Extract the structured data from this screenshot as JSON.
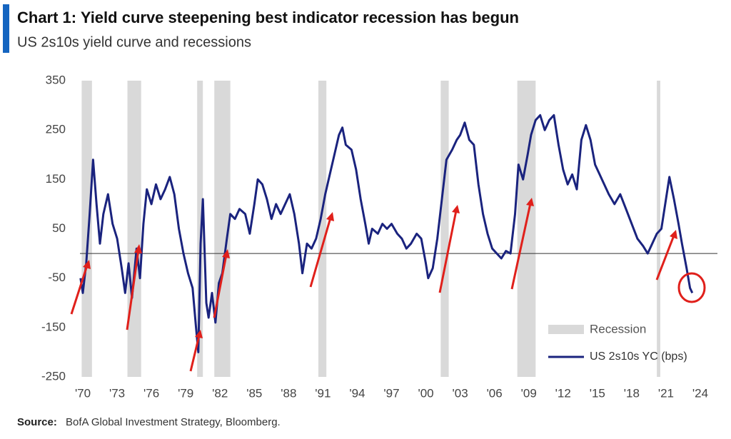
{
  "chart_data": {
    "type": "line",
    "title": "Chart 1: Yield curve steepening best indicator recession has begun",
    "subtitle": "US 2s10s yield curve and recessions",
    "source_label": "Source:",
    "source": "BofA Global Investment Strategy, Bloomberg.",
    "xlim": [
      1969,
      2025.5
    ],
    "ylim": [
      -250,
      350
    ],
    "yticks": [
      350,
      250,
      150,
      50,
      -50,
      -150,
      -250
    ],
    "xticks": [
      {
        "value": 1970,
        "label": "'70"
      },
      {
        "value": 1973,
        "label": "'73"
      },
      {
        "value": 1976,
        "label": "'76"
      },
      {
        "value": 1979,
        "label": "'79"
      },
      {
        "value": 1982,
        "label": "'82"
      },
      {
        "value": 1985,
        "label": "'85"
      },
      {
        "value": 1988,
        "label": "'88"
      },
      {
        "value": 1991,
        "label": "'91"
      },
      {
        "value": 1994,
        "label": "'94"
      },
      {
        "value": 1997,
        "label": "'97"
      },
      {
        "value": 2000,
        "label": "'00"
      },
      {
        "value": 2003,
        "label": "'03"
      },
      {
        "value": 2006,
        "label": "'06"
      },
      {
        "value": 2009,
        "label": "'09"
      },
      {
        "value": 2012,
        "label": "'12"
      },
      {
        "value": 2015,
        "label": "'15"
      },
      {
        "value": 2018,
        "label": "'18"
      },
      {
        "value": 2021,
        "label": "'21"
      },
      {
        "value": 2024,
        "label": "'24"
      }
    ],
    "recessions": {
      "name": "Recession",
      "color": "#d9d9d9",
      "spans": [
        [
          1969.9,
          1970.8
        ],
        [
          1973.9,
          1975.1
        ],
        [
          1980.0,
          1980.5
        ],
        [
          1981.5,
          1982.9
        ],
        [
          1990.6,
          1991.3
        ],
        [
          2001.3,
          2002.0
        ],
        [
          2008.0,
          2009.6
        ],
        [
          2020.2,
          2020.5
        ]
      ]
    },
    "x": [
      1969.8,
      1970.0,
      1970.3,
      1970.6,
      1970.9,
      1971.2,
      1971.5,
      1971.8,
      1972.2,
      1972.6,
      1973.0,
      1973.4,
      1973.7,
      1974.0,
      1974.3,
      1974.7,
      1975.0,
      1975.3,
      1975.6,
      1976.0,
      1976.4,
      1976.8,
      1977.2,
      1977.6,
      1978.0,
      1978.4,
      1978.8,
      1979.2,
      1979.6,
      1979.9,
      1980.1,
      1980.3,
      1980.5,
      1980.8,
      1981.0,
      1981.3,
      1981.6,
      1981.9,
      1982.2,
      1982.6,
      1982.9,
      1983.3,
      1983.7,
      1984.2,
      1984.6,
      1985.0,
      1985.3,
      1985.7,
      1986.1,
      1986.5,
      1986.9,
      1987.3,
      1987.7,
      1988.1,
      1988.5,
      1988.9,
      1989.2,
      1989.6,
      1990.0,
      1990.4,
      1990.8,
      1991.2,
      1991.6,
      1992.0,
      1992.4,
      1992.7,
      1993.0,
      1993.5,
      1993.9,
      1994.3,
      1994.7,
      1995.0,
      1995.3,
      1995.8,
      1996.2,
      1996.6,
      1997.0,
      1997.5,
      1997.9,
      1998.3,
      1998.7,
      1999.2,
      1999.6,
      2000.0,
      2000.2,
      2000.6,
      2001.0,
      2001.4,
      2001.8,
      2002.3,
      2002.7,
      2003.0,
      2003.4,
      2003.8,
      2004.2,
      2004.6,
      2005.0,
      2005.4,
      2005.8,
      2006.2,
      2006.6,
      2007.0,
      2007.4,
      2007.8,
      2008.1,
      2008.5,
      2008.9,
      2009.2,
      2009.6,
      2010.0,
      2010.4,
      2010.8,
      2011.2,
      2011.6,
      2012.0,
      2012.4,
      2012.8,
      2013.2,
      2013.6,
      2014.0,
      2014.4,
      2014.8,
      2015.2,
      2015.6,
      2016.0,
      2016.5,
      2017.0,
      2017.5,
      2018.0,
      2018.5,
      2019.0,
      2019.4,
      2019.8,
      2020.2,
      2020.6,
      2021.0,
      2021.3,
      2021.7,
      2022.1,
      2022.4,
      2022.8,
      2023.1,
      2023.3
    ],
    "series": [
      {
        "name": "US 2s10s YC (bps)",
        "color": "#1a237e",
        "values": [
          -50,
          -80,
          -20,
          80,
          190,
          100,
          20,
          80,
          120,
          60,
          30,
          -30,
          -80,
          -20,
          -90,
          10,
          -50,
          60,
          130,
          100,
          140,
          110,
          130,
          155,
          120,
          50,
          0,
          -40,
          -70,
          -150,
          -200,
          20,
          110,
          -100,
          -130,
          -80,
          -140,
          -60,
          -40,
          30,
          80,
          70,
          90,
          80,
          40,
          100,
          150,
          140,
          110,
          70,
          100,
          80,
          100,
          120,
          80,
          20,
          -40,
          20,
          10,
          30,
          70,
          120,
          160,
          200,
          240,
          255,
          220,
          210,
          170,
          110,
          60,
          20,
          50,
          40,
          60,
          50,
          60,
          40,
          30,
          10,
          20,
          40,
          30,
          -20,
          -50,
          -30,
          30,
          110,
          190,
          210,
          230,
          240,
          265,
          230,
          220,
          140,
          80,
          40,
          10,
          0,
          -10,
          5,
          0,
          80,
          180,
          150,
          200,
          240,
          270,
          280,
          250,
          270,
          280,
          220,
          170,
          140,
          160,
          130,
          230,
          260,
          230,
          180,
          160,
          140,
          120,
          100,
          120,
          90,
          60,
          30,
          15,
          0,
          20,
          40,
          50,
          110,
          155,
          110,
          60,
          20,
          -30,
          -70,
          -80
        ]
      }
    ]
  }
}
